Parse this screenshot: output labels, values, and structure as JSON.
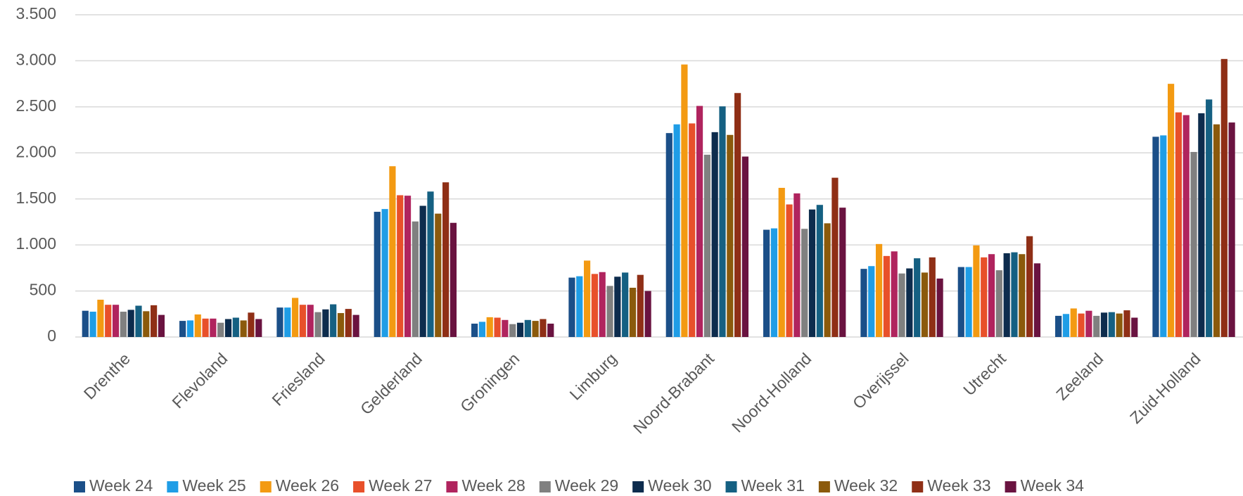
{
  "chart_data": {
    "type": "bar",
    "categories": [
      "Drenthe",
      "Flevoland",
      "Friesland",
      "Gelderland",
      "Groningen",
      "Limburg",
      "Noord-Brabant",
      "Noord-Holland",
      "Overijssel",
      "Utrecht",
      "Zeeland",
      "Zuid-Holland"
    ],
    "series": [
      {
        "name": "Week 24",
        "color": "#1b4f88",
        "values": [
          285,
          175,
          320,
          1360,
          145,
          645,
          2215,
          1165,
          740,
          760,
          230,
          2175
        ]
      },
      {
        "name": "Week 25",
        "color": "#1f9de6",
        "values": [
          275,
          180,
          320,
          1390,
          165,
          660,
          2310,
          1180,
          770,
          760,
          250,
          2190
        ]
      },
      {
        "name": "Week 26",
        "color": "#f39a12",
        "values": [
          405,
          245,
          425,
          1855,
          215,
          830,
          2960,
          1620,
          1010,
          995,
          310,
          2750
        ]
      },
      {
        "name": "Week 27",
        "color": "#e8502a",
        "values": [
          350,
          200,
          350,
          1540,
          210,
          685,
          2320,
          1440,
          880,
          865,
          255,
          2440
        ]
      },
      {
        "name": "Week 28",
        "color": "#b0245e",
        "values": [
          350,
          200,
          350,
          1535,
          185,
          705,
          2510,
          1560,
          930,
          900,
          285,
          2410
        ]
      },
      {
        "name": "Week 29",
        "color": "#808080",
        "values": [
          275,
          155,
          270,
          1255,
          140,
          555,
          1980,
          1175,
          690,
          725,
          230,
          2010
        ]
      },
      {
        "name": "Week 30",
        "color": "#0d2c4d",
        "values": [
          295,
          195,
          300,
          1425,
          155,
          655,
          2225,
          1385,
          745,
          910,
          265,
          2430
        ]
      },
      {
        "name": "Week 31",
        "color": "#156082",
        "values": [
          340,
          210,
          355,
          1580,
          185,
          700,
          2505,
          1435,
          855,
          920,
          270,
          2580
        ]
      },
      {
        "name": "Week 32",
        "color": "#8b5a0c",
        "values": [
          280,
          180,
          260,
          1340,
          175,
          535,
          2195,
          1235,
          700,
          900,
          255,
          2310
        ]
      },
      {
        "name": "Week 33",
        "color": "#8f2f16",
        "values": [
          345,
          265,
          305,
          1680,
          195,
          675,
          2650,
          1730,
          865,
          1095,
          290,
          3020
        ]
      },
      {
        "name": "Week 34",
        "color": "#6a1340",
        "values": [
          240,
          195,
          240,
          1240,
          145,
          500,
          1960,
          1405,
          635,
          800,
          210,
          2330
        ]
      }
    ],
    "ylim": [
      0,
      3500
    ],
    "yticks": [
      0,
      500,
      {
        "value": 1000,
        "label": "1.000"
      },
      {
        "value": 1500,
        "label": "1.500"
      },
      {
        "value": 2000,
        "label": "2.000"
      },
      {
        "value": 2500,
        "label": "2.500"
      },
      {
        "value": 3000,
        "label": "3.000"
      },
      {
        "value": 3500,
        "label": "3.500"
      }
    ],
    "grid": true,
    "legend": "bottom"
  }
}
